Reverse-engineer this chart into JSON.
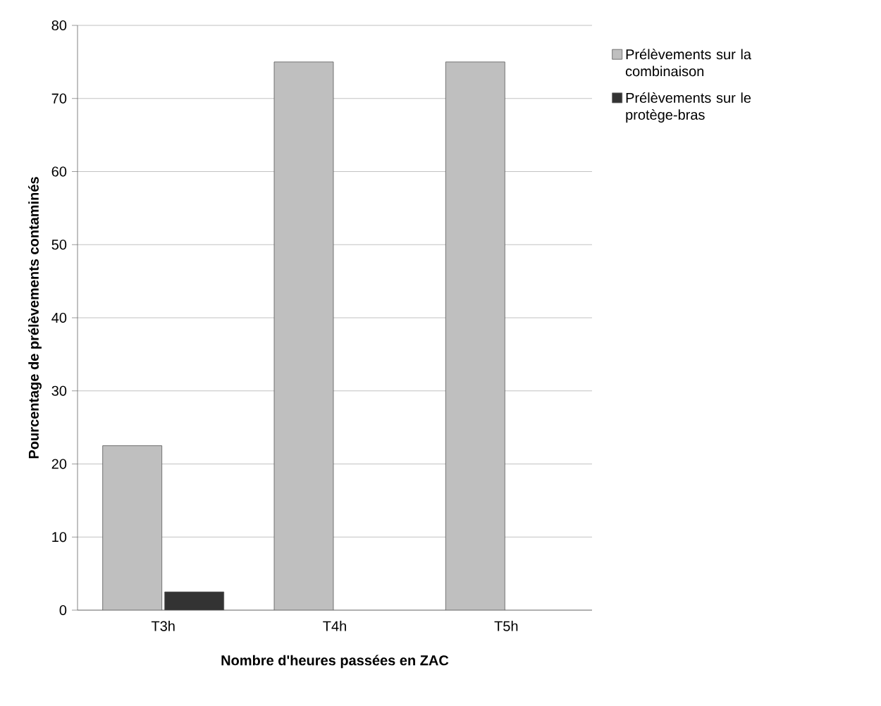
{
  "chart_data": {
    "type": "bar",
    "xlabel": "Nombre d'heures passées en ZAC",
    "ylabel": "Pourcentage de prélèvements contaminés",
    "categories": [
      "T3h",
      "T4h",
      "T5h"
    ],
    "series": [
      {
        "name": "Prélèvements sur la combinaison",
        "color": "#bfbfbf",
        "values": [
          22.5,
          75,
          75
        ]
      },
      {
        "name": "Prélèvements sur le protège-bras",
        "color": "#333333",
        "values": [
          2.5,
          null,
          null
        ]
      }
    ],
    "ylim": [
      0,
      80
    ],
    "yticks": [
      0,
      10,
      20,
      30,
      40,
      50,
      60,
      70,
      80
    ],
    "grid": "y",
    "legend": "top right"
  }
}
